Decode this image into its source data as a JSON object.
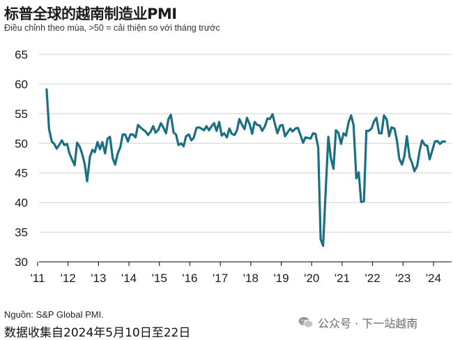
{
  "header": {
    "title": "标普全球的越南制造业PMI",
    "subtitle": "Điều chỉnh theo mùa, >50 = cải thiện so với tháng trước"
  },
  "footer": {
    "source": "Nguồn: S&P Global PMI.",
    "note": "数据收集自2024年5月10日至22日",
    "watermark": "公众号 · 下一站越南"
  },
  "colors": {
    "line": "#1b6f82",
    "grid": "#d0d0d0",
    "axis": "#000000"
  },
  "icons": {
    "watermark": "wechat-icon"
  },
  "chart_data": {
    "type": "line",
    "title": "标普全球的越南制造业PMI",
    "xlabel": "",
    "ylabel": "",
    "ylim": [
      30,
      65
    ],
    "yticks": [
      30,
      35,
      40,
      45,
      50,
      55,
      60,
      65
    ],
    "xlim": [
      2011.2,
      2024.4
    ],
    "xticks": [
      {
        "x": 2011,
        "label": "'11"
      },
      {
        "x": 2012,
        "label": "'12"
      },
      {
        "x": 2013,
        "label": "'13"
      },
      {
        "x": 2014,
        "label": "'14"
      },
      {
        "x": 2015,
        "label": "'15"
      },
      {
        "x": 2016,
        "label": "'16"
      },
      {
        "x": 2017,
        "label": "'17"
      },
      {
        "x": 2018,
        "label": "'18"
      },
      {
        "x": 2019,
        "label": "'19"
      },
      {
        "x": 2020,
        "label": "'20"
      },
      {
        "x": 2021,
        "label": "'21"
      },
      {
        "x": 2022,
        "label": "'22"
      },
      {
        "x": 2023,
        "label": "'23"
      },
      {
        "x": 2024,
        "label": "'24"
      }
    ],
    "grid": "horizontal",
    "series": [
      {
        "x": [
          2011.25,
          2011.33,
          2011.42,
          2011.5,
          2011.58,
          2011.67,
          2011.75,
          2011.83,
          2011.92,
          2012.0,
          2012.08,
          2012.17,
          2012.25,
          2012.33,
          2012.42,
          2012.5,
          2012.58,
          2012.67,
          2012.75,
          2012.83,
          2012.92,
          2013.0,
          2013.08,
          2013.17,
          2013.25,
          2013.33,
          2013.42,
          2013.5,
          2013.58,
          2013.67,
          2013.75,
          2013.83,
          2013.92,
          2014.0,
          2014.08,
          2014.17,
          2014.25,
          2014.33,
          2014.42,
          2014.5,
          2014.58,
          2014.67,
          2014.75,
          2014.83,
          2014.92,
          2015.0,
          2015.08,
          2015.17,
          2015.25,
          2015.33,
          2015.42,
          2015.5,
          2015.58,
          2015.67,
          2015.75,
          2015.83,
          2015.92,
          2016.0,
          2016.08,
          2016.17,
          2016.25,
          2016.33,
          2016.42,
          2016.5,
          2016.58,
          2016.67,
          2016.75,
          2016.83,
          2016.92,
          2017.0,
          2017.08,
          2017.17,
          2017.25,
          2017.33,
          2017.42,
          2017.5,
          2017.58,
          2017.67,
          2017.75,
          2017.83,
          2017.92,
          2018.0,
          2018.08,
          2018.17,
          2018.25,
          2018.33,
          2018.42,
          2018.5,
          2018.58,
          2018.67,
          2018.75,
          2018.83,
          2018.92,
          2019.0,
          2019.08,
          2019.17,
          2019.25,
          2019.33,
          2019.42,
          2019.5,
          2019.58,
          2019.67,
          2019.75,
          2019.83,
          2019.92,
          2020.0,
          2020.08,
          2020.17,
          2020.25,
          2020.33,
          2020.42,
          2020.5,
          2020.58,
          2020.67,
          2020.75,
          2020.83,
          2020.92,
          2021.0,
          2021.08,
          2021.17,
          2021.25,
          2021.33,
          2021.42,
          2021.5,
          2021.58,
          2021.67,
          2021.75,
          2021.83,
          2021.92,
          2022.0,
          2022.08,
          2022.17,
          2022.25,
          2022.33,
          2022.42,
          2022.5,
          2022.58,
          2022.67,
          2022.75,
          2022.83,
          2022.92,
          2023.0,
          2023.08,
          2023.17,
          2023.25,
          2023.33,
          2023.42,
          2023.5,
          2023.58,
          2023.67,
          2023.75,
          2023.83,
          2023.92,
          2024.0,
          2024.08,
          2024.17,
          2024.25,
          2024.33
        ],
        "values": [
          59.1,
          52.4,
          50.3,
          49.9,
          49.1,
          49.8,
          50.5,
          49.7,
          49.9,
          48.3,
          47.3,
          46.3,
          50.1,
          49.5,
          48.2,
          46.5,
          43.6,
          47.7,
          48.9,
          48.5,
          50.2,
          49.0,
          50.2,
          48.3,
          50.8,
          51.1,
          47.5,
          46.4,
          48.2,
          49.4,
          51.5,
          51.5,
          50.3,
          51.5,
          51.5,
          51.0,
          53.1,
          52.7,
          52.3,
          52.0,
          51.4,
          52.0,
          52.9,
          51.8,
          52.3,
          53.4,
          52.7,
          51.7,
          54.1,
          54.8,
          51.8,
          51.5,
          49.7,
          50.0,
          49.5,
          51.2,
          51.5,
          50.5,
          50.9,
          52.6,
          52.7,
          52.5,
          52.2,
          52.9,
          52.2,
          52.9,
          53.4,
          52.1,
          53.6,
          51.3,
          51.7,
          51.0,
          52.5,
          51.6,
          51.4,
          52.2,
          54.1,
          53.1,
          52.4,
          54.3,
          53.2,
          51.6,
          53.6,
          53.1,
          53.0,
          52.1,
          52.9,
          54.2,
          54.1,
          54.9,
          53.2,
          51.7,
          53.0,
          53.1,
          51.2,
          51.9,
          52.5,
          52.0,
          52.5,
          52.6,
          51.5,
          50.1,
          51.0,
          50.9,
          50.8,
          51.7,
          51.6,
          49.3,
          33.8,
          32.7,
          42.7,
          51.1,
          47.6,
          45.7,
          52.2,
          51.8,
          49.9,
          51.7,
          51.3,
          53.6,
          54.7,
          53.1,
          44.1,
          45.1,
          40.1,
          40.2,
          52.1,
          52.1,
          52.5,
          53.7,
          54.3,
          51.7,
          51.7,
          54.7,
          54.0,
          51.2,
          52.7,
          52.5,
          50.6,
          47.4,
          46.4,
          47.9,
          51.2,
          47.7,
          46.7,
          45.3,
          46.2,
          48.7,
          50.5,
          49.7,
          49.6,
          47.3,
          48.9,
          50.3,
          50.4,
          49.9,
          50.3,
          50.3
        ]
      }
    ]
  }
}
